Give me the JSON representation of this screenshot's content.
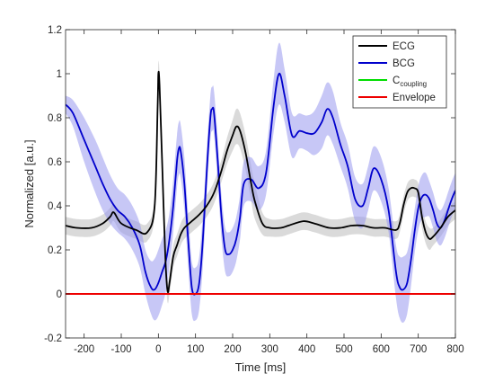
{
  "chart_data": {
    "type": "line",
    "xlabel": "Time [ms]",
    "ylabel": "Normalized [a.u.]",
    "xlim": [
      -250,
      800
    ],
    "ylim": [
      -0.2,
      1.2
    ],
    "xticks": [
      -200,
      -100,
      0,
      100,
      200,
      300,
      400,
      500,
      600,
      700,
      800
    ],
    "yticks": [
      -0.2,
      0,
      0.2,
      0.4,
      0.6,
      0.8,
      1,
      1.2
    ],
    "xtick_labels": [
      "-200",
      "-100",
      "0",
      "100",
      "200",
      "300",
      "400",
      "500",
      "600",
      "700",
      "800"
    ],
    "ytick_labels": [
      "-0.2",
      "0",
      "0.2",
      "0.4",
      "0.6",
      "0.8",
      "1",
      "1.2"
    ],
    "grid": false,
    "legend_position": "top-right",
    "legend": [
      {
        "label": "ECG",
        "sub": "",
        "color": "#000000"
      },
      {
        "label": "BCG",
        "sub": "",
        "color": "#0000cc"
      },
      {
        "label": "C",
        "sub": "coupling",
        "color": "#00dd00"
      },
      {
        "label": "Envelope",
        "sub": "",
        "color": "#ee0000"
      }
    ],
    "series": [
      {
        "name": "ECG",
        "color": "#000000",
        "band_color": "#bbbbbb",
        "x": [
          -250,
          -220,
          -180,
          -150,
          -130,
          -120,
          -100,
          -60,
          -30,
          -10,
          -2,
          0,
          3,
          10,
          15,
          20,
          25,
          30,
          40,
          50,
          60,
          70,
          90,
          110,
          130,
          150,
          170,
          185,
          200,
          210,
          220,
          235,
          250,
          260,
          280,
          300,
          330,
          350,
          390,
          420,
          460,
          490,
          520,
          550,
          580,
          610,
          640,
          650,
          660,
          670,
          680,
          690,
          700,
          710,
          720,
          730,
          740,
          760,
          780,
          800
        ],
        "y": [
          0.31,
          0.3,
          0.3,
          0.32,
          0.35,
          0.37,
          0.32,
          0.29,
          0.28,
          0.4,
          0.85,
          1.0,
          0.95,
          0.6,
          0.35,
          0.12,
          0.01,
          0.05,
          0.17,
          0.22,
          0.27,
          0.3,
          0.33,
          0.36,
          0.4,
          0.46,
          0.56,
          0.65,
          0.72,
          0.76,
          0.74,
          0.64,
          0.5,
          0.42,
          0.32,
          0.3,
          0.3,
          0.31,
          0.33,
          0.32,
          0.3,
          0.3,
          0.31,
          0.31,
          0.3,
          0.3,
          0.29,
          0.32,
          0.4,
          0.46,
          0.48,
          0.48,
          0.46,
          0.35,
          0.28,
          0.25,
          0.26,
          0.3,
          0.35,
          0.38
        ],
        "band_halfwidth": [
          0.04,
          0.04,
          0.04,
          0.04,
          0.04,
          0.04,
          0.04,
          0.04,
          0.04,
          0.04,
          0.05,
          0.05,
          0.05,
          0.05,
          0.05,
          0.05,
          0.05,
          0.05,
          0.05,
          0.05,
          0.05,
          0.05,
          0.05,
          0.05,
          0.05,
          0.05,
          0.05,
          0.06,
          0.07,
          0.08,
          0.08,
          0.08,
          0.08,
          0.08,
          0.05,
          0.04,
          0.04,
          0.04,
          0.04,
          0.04,
          0.04,
          0.04,
          0.04,
          0.04,
          0.04,
          0.04,
          0.04,
          0.04,
          0.04,
          0.04,
          0.04,
          0.04,
          0.04,
          0.05,
          0.05,
          0.05,
          0.04,
          0.04,
          0.04,
          0.04
        ]
      },
      {
        "name": "BCG",
        "color": "#0000cc",
        "band_color": "#9999ee",
        "x": [
          -250,
          -230,
          -200,
          -170,
          -150,
          -130,
          -110,
          -90,
          -70,
          -50,
          -35,
          -20,
          -10,
          0,
          10,
          20,
          30,
          40,
          50,
          55,
          60,
          70,
          80,
          90,
          100,
          110,
          120,
          130,
          140,
          145,
          150,
          160,
          170,
          180,
          190,
          200,
          210,
          220,
          230,
          250,
          270,
          290,
          310,
          325,
          340,
          360,
          380,
          400,
          420,
          440,
          455,
          470,
          490,
          510,
          530,
          550,
          565,
          580,
          600,
          620,
          640,
          650,
          660,
          670,
          680,
          690,
          700,
          710,
          720,
          730,
          740,
          750,
          760,
          770,
          780,
          790,
          800
        ],
        "y": [
          0.86,
          0.82,
          0.7,
          0.58,
          0.5,
          0.43,
          0.38,
          0.35,
          0.3,
          0.22,
          0.1,
          0.03,
          0.02,
          0.05,
          0.1,
          0.15,
          0.25,
          0.4,
          0.6,
          0.66,
          0.65,
          0.5,
          0.25,
          0.03,
          0.0,
          0.05,
          0.25,
          0.55,
          0.8,
          0.84,
          0.82,
          0.6,
          0.35,
          0.2,
          0.18,
          0.2,
          0.25,
          0.35,
          0.5,
          0.52,
          0.48,
          0.55,
          0.85,
          1.0,
          0.9,
          0.72,
          0.74,
          0.73,
          0.73,
          0.78,
          0.84,
          0.8,
          0.68,
          0.58,
          0.43,
          0.4,
          0.48,
          0.57,
          0.52,
          0.38,
          0.1,
          0.03,
          0.02,
          0.05,
          0.15,
          0.28,
          0.39,
          0.44,
          0.45,
          0.43,
          0.38,
          0.32,
          0.3,
          0.33,
          0.38,
          0.43,
          0.47
        ],
        "band_halfwidth": [
          0.04,
          0.06,
          0.1,
          0.12,
          0.12,
          0.11,
          0.1,
          0.1,
          0.1,
          0.1,
          0.1,
          0.12,
          0.14,
          0.15,
          0.15,
          0.14,
          0.12,
          0.12,
          0.12,
          0.12,
          0.12,
          0.12,
          0.12,
          0.12,
          0.12,
          0.12,
          0.12,
          0.1,
          0.1,
          0.1,
          0.1,
          0.1,
          0.1,
          0.1,
          0.1,
          0.1,
          0.1,
          0.1,
          0.1,
          0.1,
          0.1,
          0.1,
          0.12,
          0.14,
          0.12,
          0.1,
          0.08,
          0.08,
          0.1,
          0.12,
          0.12,
          0.12,
          0.1,
          0.1,
          0.1,
          0.1,
          0.1,
          0.1,
          0.1,
          0.1,
          0.12,
          0.14,
          0.15,
          0.14,
          0.12,
          0.1,
          0.1,
          0.1,
          0.1,
          0.08,
          0.08,
          0.08,
          0.08,
          0.08,
          0.08,
          0.08,
          0.08
        ]
      },
      {
        "name": "Envelope",
        "color": "#ee0000",
        "band_color": "",
        "x": [
          -250,
          800
        ],
        "y": [
          0,
          0
        ],
        "band_halfwidth": [
          0,
          0
        ]
      }
    ]
  }
}
